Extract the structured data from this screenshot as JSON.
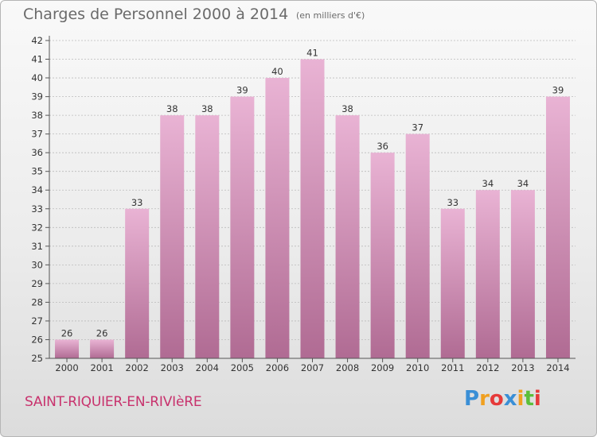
{
  "header": {
    "title": "Charges de Personnel 2000 à 2014",
    "subtitle": "(en milliers d'€)"
  },
  "footer": {
    "city": "SAINT-RIQUIER-EN-RIVIèRE",
    "brand_letters": [
      "P",
      "r",
      "o",
      "x",
      "i",
      "t",
      "i"
    ],
    "brand_colors": [
      "#3a8fd6",
      "#f0a020",
      "#e63a3a",
      "#3a8fd6",
      "#f0a020",
      "#5bbf3a",
      "#e63a3a"
    ]
  },
  "colors": {
    "bar_top": "#e9b3d4",
    "bar_bottom": "#b06b93",
    "grid": "#bbbbbb",
    "axis": "#555555",
    "text": "#333333"
  },
  "chart_data": {
    "type": "bar",
    "title": "Charges de Personnel 2000 à 2014",
    "subtitle": "(en milliers d'€)",
    "categories": [
      "2000",
      "2001",
      "2002",
      "2003",
      "2004",
      "2005",
      "2006",
      "2007",
      "2008",
      "2009",
      "2010",
      "2011",
      "2012",
      "2013",
      "2014"
    ],
    "values": [
      26,
      26,
      33,
      38,
      38,
      39,
      40,
      41,
      38,
      36,
      37,
      33,
      34,
      34,
      39
    ],
    "ylim": [
      25,
      42
    ],
    "yticks": [
      25,
      26,
      27,
      28,
      29,
      30,
      31,
      32,
      33,
      34,
      35,
      36,
      37,
      38,
      39,
      40,
      41,
      42
    ],
    "grid": true,
    "data_labels": true
  }
}
